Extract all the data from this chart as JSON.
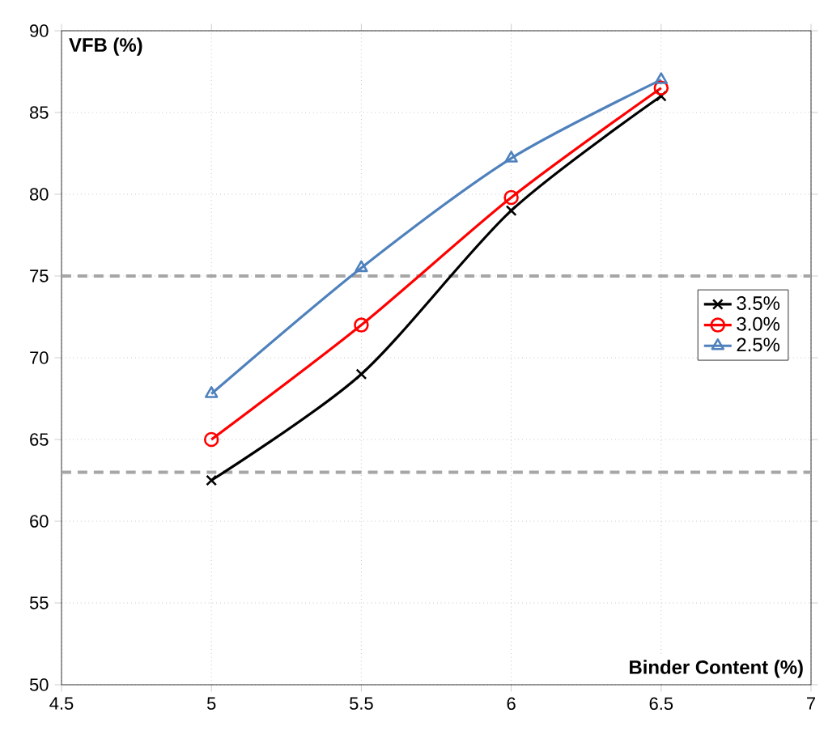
{
  "chart_data": {
    "type": "line",
    "xlabel": "Binder Content (%)",
    "ylabel": "VFB (%)",
    "x": [
      5,
      5.5,
      6,
      6.5
    ],
    "series": [
      {
        "name": "3.5%",
        "color": "#000000",
        "marker": "cross",
        "values": [
          62.5,
          69,
          79,
          86
        ]
      },
      {
        "name": "3.0%",
        "color": "#ff0000",
        "marker": "circle",
        "values": [
          65,
          72,
          79.8,
          86.5
        ]
      },
      {
        "name": "2.5%",
        "color": "#4f81bd",
        "marker": "triangle",
        "values": [
          67.8,
          75.5,
          82.2,
          87
        ]
      }
    ],
    "xlim": [
      4.5,
      7
    ],
    "xticks": [
      4.5,
      5,
      5.5,
      6,
      6.5,
      7
    ],
    "ylim": [
      50,
      90
    ],
    "yticks": [
      50,
      55,
      60,
      65,
      70,
      75,
      80,
      85,
      90
    ],
    "ref_lines": [
      {
        "axis": "y",
        "value": 75,
        "color": "#a6a6a6",
        "line_style": "dashed"
      },
      {
        "axis": "y",
        "value": 63,
        "color": "#a6a6a6",
        "line_style": "dashed"
      }
    ],
    "grid": true,
    "legend": "right",
    "line_style": "solid"
  }
}
